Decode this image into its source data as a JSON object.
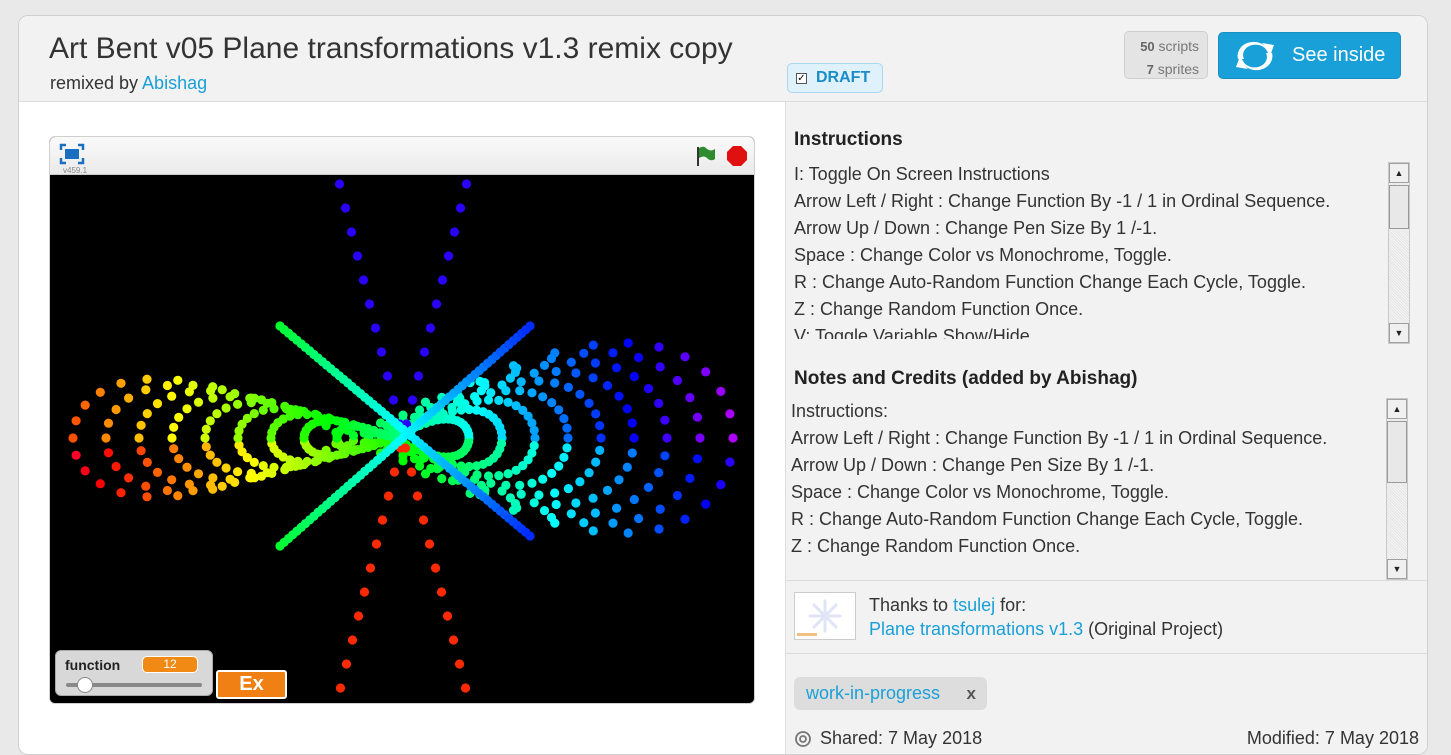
{
  "project": {
    "title": "Art Bent v05 Plane transformations v1.3 remix copy",
    "remixed_by_label": "remixed by",
    "remixed_by_user": "Abishag",
    "draft_label": "DRAFT",
    "scripts_count": "50",
    "scripts_label": "scripts",
    "sprites_count": "7",
    "sprites_label": "sprites",
    "see_inside_label": "See inside"
  },
  "player": {
    "version": "v459.1",
    "monitor": {
      "label": "function",
      "value": "12",
      "slider_fraction": 0.14
    },
    "ex_label": "Ex",
    "colors": {
      "flag": "#2e8b2e",
      "stop": "#e01010",
      "monitor_value": "#f08a14"
    }
  },
  "instructions": {
    "title": "Instructions",
    "lines": [
      "I: Toggle On Screen Instructions",
      "Arrow Left / Right : Change Function By -1 / 1 in Ordinal Sequence.",
      "Arrow Up / Down : Change Pen Size By 1 /-1.",
      "Space : Change Color vs Monochrome, Toggle.",
      "R : Change Auto-Random Function Change Each Cycle, Toggle.",
      "Z : Change Random Function Once.",
      "V: Toggle Variable Show/Hide"
    ]
  },
  "notes": {
    "title": "Notes and Credits (added by Abishag)",
    "lines": [
      "Instructions:",
      "Arrow Left / Right : Change Function By -1 / 1 in Ordinal Sequence.",
      "Arrow Up / Down : Change Pen Size By 1 /-1.",
      "Space : Change Color vs Monochrome, Toggle.",
      "R : Change Auto-Random Function Change Each Cycle, Toggle.",
      "Z : Change Random Function Once."
    ]
  },
  "credit": {
    "thanks_prefix": "Thanks to",
    "user": "tsulej",
    "for_label": "for:",
    "project_link": "Plane transformations v1.3",
    "project_suffix": "(Original Project)"
  },
  "tag": {
    "label": "work-in-progress",
    "remove": "x"
  },
  "dates": {
    "shared": "Shared: 7 May 2018",
    "modified": "Modified: 7 May 2018"
  },
  "theme": {
    "accent": "#1aa0d8"
  }
}
